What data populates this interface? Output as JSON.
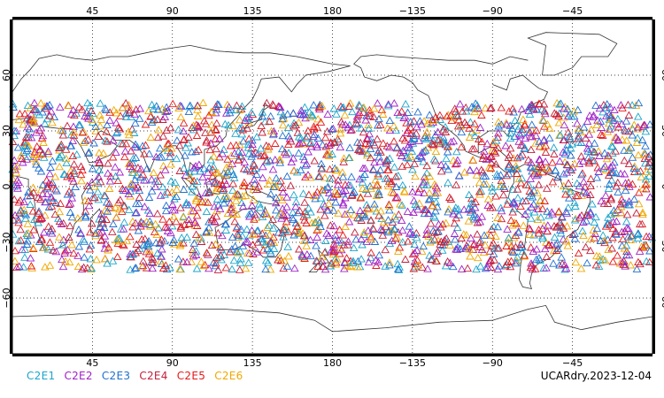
{
  "map": {
    "lon_ticks_top": [
      "45",
      "90",
      "135",
      "180",
      "−135",
      "−90",
      "−45"
    ],
    "lon_ticks_bottom": [
      "45",
      "90",
      "135",
      "180",
      "−135",
      "−90",
      "−45"
    ],
    "lat_ticks": [
      "60",
      "30",
      "0",
      "−30",
      "−60"
    ],
    "lon_tick_values": [
      45,
      90,
      135,
      180,
      -135,
      -90,
      -45
    ],
    "lat_tick_values": [
      60,
      30,
      0,
      -30,
      -60
    ],
    "lon_range": [
      0,
      360
    ],
    "lat_range": [
      -90,
      90
    ],
    "grid": "dotted",
    "marker": "open-triangle",
    "observation_band_lat": [
      -45,
      45
    ]
  },
  "legend": {
    "items": [
      {
        "label": "C2E1",
        "color": "#1aa6cc"
      },
      {
        "label": "C2E2",
        "color": "#a020c8"
      },
      {
        "label": "C2E3",
        "color": "#1f6fd0"
      },
      {
        "label": "C2E4",
        "color": "#c41e3a"
      },
      {
        "label": "C2E5",
        "color": "#e41a1c"
      },
      {
        "label": "C2E6",
        "color": "#f0a800"
      }
    ]
  },
  "footer": {
    "product_label": "UCARdry.2023-12-04"
  }
}
